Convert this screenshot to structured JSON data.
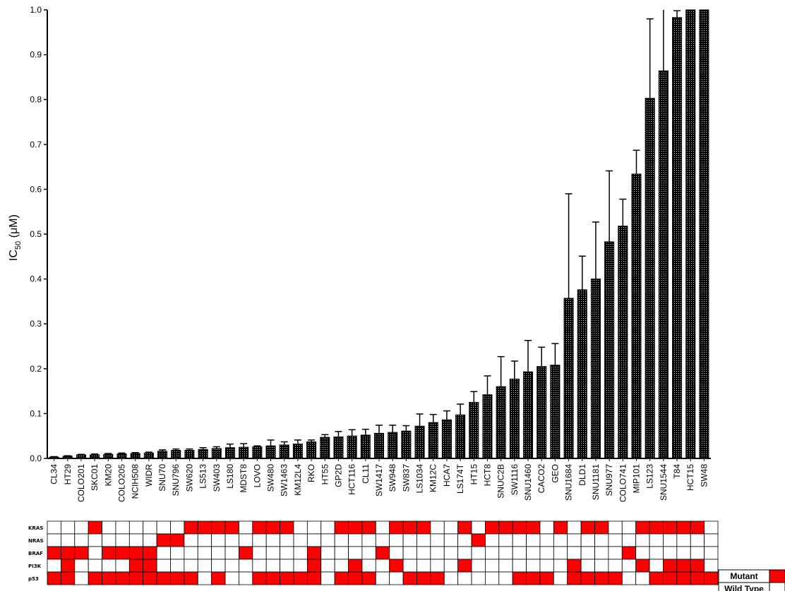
{
  "chart_data": {
    "type": "bar",
    "ylabel_main": "IC",
    "ylabel_sub": "50",
    "ylabel_unit": " (μM)",
    "ylim": [
      0,
      1.0
    ],
    "yticks": [
      "0.0",
      "0.1",
      "0.2",
      "0.3",
      "0.4",
      "0.5",
      "0.6",
      "0.7",
      "0.8",
      "0.9",
      "1.0"
    ],
    "bar_pattern": "dotted black",
    "categories": [
      "CL34",
      "HT29",
      "COLO201",
      "SKC01",
      "KM20",
      "COLO205",
      "NCIH508",
      "WIDR",
      "SNU70",
      "SNU796",
      "SW620",
      "LS513",
      "SW403",
      "LS180",
      "MDST8",
      "LOVO",
      "SW480",
      "SW1463",
      "KM12L4",
      "RKO",
      "HT55",
      "GP2D",
      "HCT116",
      "CL11",
      "SW1417",
      "SW948",
      "SW837",
      "LS1034",
      "KM12C",
      "HCA7",
      "LS174T",
      "HT15",
      "HCT8",
      "SNUC2B",
      "SW1116",
      "SNU1460",
      "CACO2",
      "GEO",
      "SNU1684",
      "DLD1",
      "SNU1181",
      "SNU977",
      "COLO741",
      "MIP101",
      "LS123",
      "SNU1544",
      "T84",
      "HCT15",
      "SW48"
    ],
    "values": [
      0.003,
      0.005,
      0.008,
      0.008,
      0.009,
      0.01,
      0.011,
      0.012,
      0.016,
      0.018,
      0.018,
      0.02,
      0.022,
      0.024,
      0.025,
      0.026,
      0.028,
      0.03,
      0.032,
      0.037,
      0.047,
      0.048,
      0.05,
      0.052,
      0.056,
      0.058,
      0.061,
      0.072,
      0.08,
      0.086,
      0.097,
      0.125,
      0.142,
      0.16,
      0.177,
      0.193,
      0.205,
      0.208,
      0.357,
      0.376,
      0.4,
      0.483,
      0.518,
      0.634,
      0.803,
      0.864,
      0.983,
      1.0,
      1.0
    ],
    "errors": [
      0.001,
      0.001,
      0.001,
      0.002,
      0.002,
      0.002,
      0.002,
      0.002,
      0.003,
      0.003,
      0.003,
      0.004,
      0.004,
      0.008,
      0.008,
      0.002,
      0.013,
      0.007,
      0.009,
      0.004,
      0.006,
      0.012,
      0.014,
      0.013,
      0.018,
      0.016,
      0.012,
      0.027,
      0.018,
      0.02,
      0.024,
      0.024,
      0.042,
      0.067,
      0.04,
      0.07,
      0.043,
      0.048,
      0.233,
      0.075,
      0.127,
      0.158,
      0.06,
      0.053,
      0.177,
      0.155,
      0.015,
      0.0,
      0.0
    ],
    "mutation_matrix": {
      "genes": [
        "KRAS",
        "NRAS",
        "BRAF",
        "PI3K",
        "p53"
      ],
      "rows": [
        [
          0,
          0,
          0,
          1,
          0,
          0,
          0,
          0,
          0,
          0,
          1,
          1,
          1,
          1,
          0,
          1,
          1,
          1,
          0,
          0,
          0,
          1,
          1,
          1,
          0,
          1,
          1,
          1,
          0,
          0,
          1,
          0,
          1,
          1,
          1,
          1,
          0,
          1,
          0,
          1,
          1,
          0,
          0,
          1,
          1,
          1,
          1,
          1,
          0
        ],
        [
          0,
          0,
          0,
          0,
          0,
          0,
          0,
          0,
          1,
          1,
          0,
          0,
          0,
          0,
          0,
          0,
          0,
          0,
          0,
          0,
          0,
          0,
          0,
          0,
          0,
          0,
          0,
          0,
          0,
          0,
          0,
          1,
          0,
          0,
          0,
          0,
          0,
          0,
          0,
          0,
          0,
          0,
          0,
          0,
          0,
          0,
          0,
          0,
          0
        ],
        [
          1,
          1,
          1,
          0,
          1,
          1,
          1,
          1,
          0,
          0,
          0,
          0,
          0,
          0,
          1,
          0,
          0,
          0,
          0,
          1,
          0,
          0,
          0,
          0,
          1,
          0,
          0,
          0,
          0,
          0,
          0,
          0,
          0,
          0,
          0,
          0,
          0,
          0,
          0,
          0,
          0,
          0,
          1,
          0,
          0,
          0,
          0,
          0,
          0
        ],
        [
          0,
          1,
          0,
          0,
          0,
          0,
          1,
          1,
          0,
          0,
          0,
          0,
          0,
          0,
          0,
          0,
          0,
          0,
          0,
          1,
          0,
          0,
          1,
          0,
          0,
          1,
          0,
          0,
          0,
          0,
          1,
          0,
          0,
          0,
          0,
          0,
          0,
          0,
          1,
          0,
          0,
          0,
          0,
          1,
          0,
          1,
          1,
          1,
          0
        ],
        [
          1,
          1,
          0,
          1,
          1,
          1,
          1,
          1,
          1,
          1,
          1,
          0,
          1,
          0,
          0,
          1,
          1,
          1,
          1,
          1,
          0,
          1,
          1,
          1,
          0,
          0,
          1,
          1,
          1,
          0,
          0,
          0,
          0,
          0,
          1,
          1,
          1,
          0,
          1,
          1,
          1,
          1,
          0,
          0,
          1,
          1,
          1,
          1,
          1
        ]
      ]
    },
    "legend": [
      {
        "label": "Mutant",
        "color": "#ff0000"
      },
      {
        "label": "Wild Type",
        "color": "#ffffff"
      }
    ]
  },
  "colors": {
    "bar": "#000000",
    "bar_dots": "#cfcfcf",
    "mutant": "#ff0000",
    "wild": "#ffffff",
    "grid_line": "#000000"
  }
}
